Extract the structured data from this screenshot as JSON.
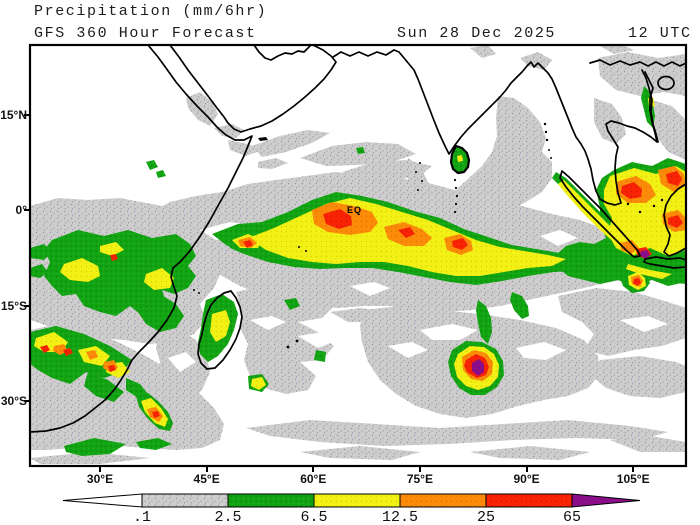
{
  "header": {
    "title": "Precipitation (mm/6hr)",
    "model_line": "GFS 360 Hour Forecast",
    "valid_date": "Sun 28 Dec 2025",
    "valid_time": "12 UTC"
  },
  "map": {
    "equator_label": "EQ",
    "lat_ticks": [
      "15°N",
      "0°",
      "15°S",
      "30°S"
    ],
    "lon_ticks": [
      "30°E",
      "45°E",
      "60°E",
      "75°E",
      "90°E",
      "105°E"
    ]
  },
  "legend": {
    "labels": [
      ".1",
      "2.5",
      "6.5",
      "12.5",
      "25",
      "65"
    ],
    "segments": [
      {
        "name": "trace",
        "color": "#cdcdcd"
      },
      {
        "name": "light",
        "color": "#12a412"
      },
      {
        "name": "moderate",
        "color": "#f2f014"
      },
      {
        "name": "heavy",
        "color": "#fb8b08"
      },
      {
        "name": "very-heavy",
        "color": "#f82305"
      }
    ],
    "underflow_color": "#ffffff",
    "overflow_color": "#8a0d8a"
  },
  "colors": {
    "coastline": "#000000",
    "frame": "#000000",
    "background": "#ffffff"
  }
}
